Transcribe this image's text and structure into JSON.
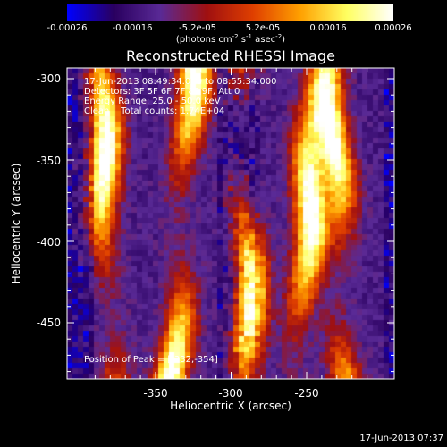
{
  "colorbar": {
    "ticks": [
      "-0.00026",
      "-0.00016",
      "-5.2e-05",
      "5.2e-05",
      "0.00016",
      "0.00026"
    ],
    "units": {
      "prefix": "(photons cm",
      "exp1": "-2",
      "mid1": " s",
      "exp2": "-1",
      "mid2": " asec",
      "exp3": "-2",
      "suffix": ")"
    },
    "gradient_colors": [
      "#0000ff",
      "#2a0060",
      "#5a2a96",
      "#a01010",
      "#e04000",
      "#ffa000",
      "#ffff60",
      "#ffffff"
    ]
  },
  "plot": {
    "title": "Reconstructed RHESSI Image",
    "xlabel": "Heliocentric X (arcsec)",
    "ylabel": "Heliocentric Y (arcsec)",
    "xticks": [
      "-350",
      "-300",
      "-250"
    ],
    "yticks": [
      "-300",
      "-350",
      "-400",
      "-450"
    ],
    "annotations": [
      "17-Jun-2013 08:49:34.000 to 08:55:34.000",
      "Detectors: 3F 5F 6F 7F 8F 9F, Att 0",
      "Energy Range: 25.0 - 50.0 keV",
      "Clean    Total counts: 1.74E+04"
    ],
    "peak_label": "Position of Peak = [-332,-354]"
  },
  "footer": "17-Jun-2013 07:37"
}
